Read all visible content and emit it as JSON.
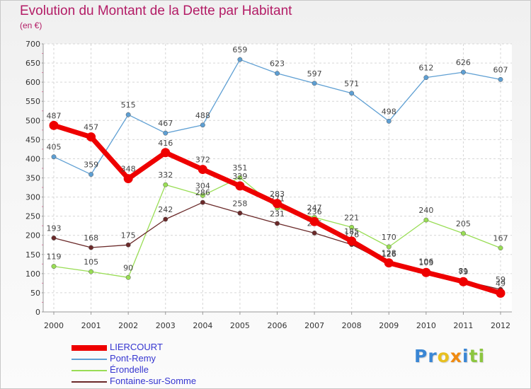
{
  "chart_data": {
    "type": "line",
    "title": "Evolution du Montant de la Dette par Habitant",
    "unit_label": "(en €)",
    "xlabel": "",
    "ylabel": "",
    "x": [
      "2000",
      "2001",
      "2002",
      "2003",
      "2004",
      "2005",
      "2006",
      "2007",
      "2008",
      "2009",
      "2010",
      "2011",
      "2012"
    ],
    "ylim": [
      0,
      700
    ],
    "yticks": [
      0,
      50,
      100,
      150,
      200,
      250,
      300,
      350,
      400,
      450,
      500,
      550,
      600,
      650,
      700
    ],
    "grid": true,
    "legend_position": "bottom-left",
    "series": [
      {
        "name": "LIERCOURT",
        "color": "#ee0000",
        "emphasis": true,
        "values": [
          487,
          457,
          348,
          416,
          372,
          329,
          283,
          236,
          185,
          128,
          103,
          79,
          49
        ]
      },
      {
        "name": "Pont-Remy",
        "color": "#5e9fd3",
        "values": [
          405,
          359,
          515,
          467,
          488,
          659,
          623,
          597,
          571,
          498,
          612,
          626,
          607
        ]
      },
      {
        "name": "Érondelle",
        "color": "#99dd55",
        "values": [
          119,
          105,
          90,
          332,
          304,
          351,
          271,
          247,
          221,
          170,
          240,
          205,
          167
        ]
      },
      {
        "name": "Fontaine-sur-Somme",
        "color": "#6b2a2a",
        "values": [
          193,
          168,
          175,
          242,
          286,
          258,
          231,
          206,
          176,
          126,
          106,
          81,
          59
        ]
      }
    ]
  },
  "brand": {
    "letters": [
      {
        "ch": "P",
        "color": "#3a86d4"
      },
      {
        "ch": "r",
        "color": "#3a86d4"
      },
      {
        "ch": "o",
        "color": "#e8c020"
      },
      {
        "ch": "x",
        "color": "#f08a10"
      },
      {
        "ch": "i",
        "color": "#3a86d4"
      },
      {
        "ch": "t",
        "color": "#8cc63f"
      },
      {
        "ch": "i",
        "color": "#8cc63f"
      }
    ]
  }
}
